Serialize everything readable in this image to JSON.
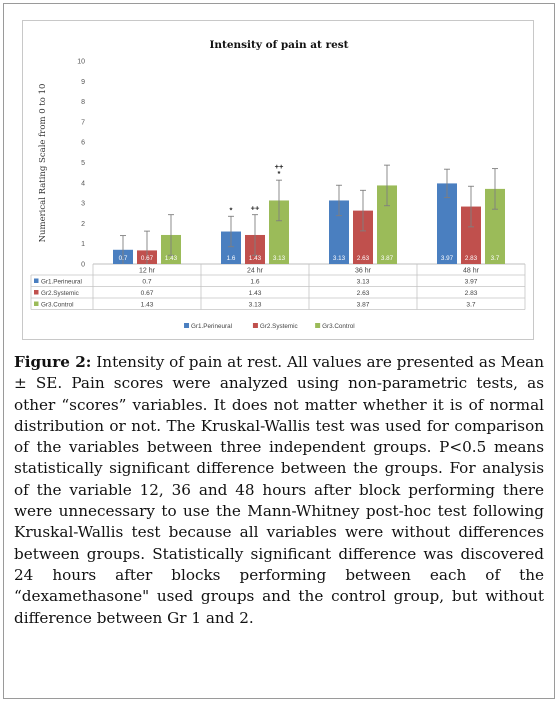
{
  "figure": {
    "label": "Figure 2:",
    "caption": "Intensity of pain at rest. All values are presented as Mean ± SE. Pain scores were analyzed using non-parametric tests, as other “scores” variables. It does not matter whether it is of normal distribution or not. The Kruskal-Wallis test was used for comparison of the variables between three independent groups. P<0.5 means statistically significant difference between the groups. For analysis of the variable 12, 36 and 48 hours after block performing there were unnecessary to use the Mann-Whitney post-hoc test following Kruskal-Wallis test because all variables were without differences between groups. Statistically significant difference was discovered 24 hours after blocks performing between each of the “dexamethasone\" used groups and the control group, but without difference between Gr 1 and 2."
  },
  "chart_data": {
    "type": "bar",
    "title": "Intensity of pain at rest",
    "ylabel": "Numerical Rating Scale from 0 to 10",
    "xlabel": "",
    "ylim": [
      0,
      10
    ],
    "yticks": [
      "0",
      "1",
      "2",
      "3",
      "4",
      "5",
      "6",
      "7",
      "8",
      "9",
      "10"
    ],
    "grid": false,
    "legend_position": "bottom",
    "categories": [
      "12 hr",
      "24 hr",
      "36 hr",
      "48 hr"
    ],
    "series": [
      {
        "name": "Gr1.Perineural",
        "color": "#4a7fc0",
        "values": [
          0.7,
          1.6,
          3.13,
          3.97
        ],
        "labels": [
          "0.7",
          "1.6",
          "3.13",
          "3.97"
        ],
        "error": [
          0.7,
          0.75,
          0.75,
          0.7
        ],
        "annotations": [
          "",
          "*",
          "",
          ""
        ]
      },
      {
        "name": "Gr2.Systemic",
        "color": "#c0504d",
        "values": [
          0.67,
          1.43,
          2.63,
          2.83
        ],
        "labels": [
          "0.67",
          "1.43",
          "2.63",
          "2.83"
        ],
        "error": [
          0.95,
          1.0,
          1.0,
          1.0
        ],
        "annotations": [
          "",
          "++",
          "",
          ""
        ]
      },
      {
        "name": "Gr3.Control",
        "color": "#9bbb59",
        "values": [
          1.43,
          3.13,
          3.87,
          3.7
        ],
        "labels": [
          "1.43",
          "3.13",
          "3.87",
          "3.7"
        ],
        "error": [
          1.0,
          1.0,
          1.0,
          1.0
        ],
        "annotations": [
          "",
          "++\n*",
          "",
          ""
        ]
      }
    ]
  }
}
